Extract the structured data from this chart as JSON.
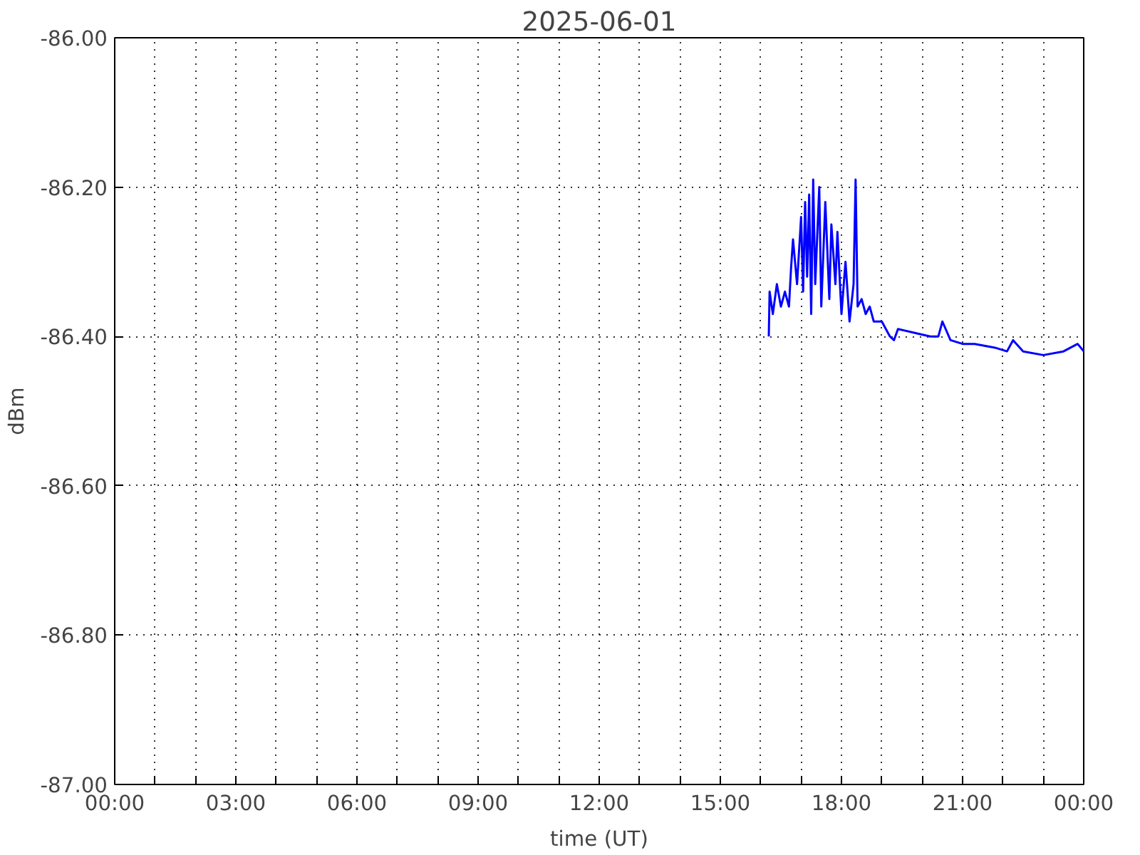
{
  "chart_data": {
    "type": "line",
    "title": "2025-06-01",
    "xlabel": "time (UT)",
    "ylabel": "dBm",
    "xlim": [
      0,
      24
    ],
    "ylim": [
      -87,
      -86
    ],
    "xticks": [
      {
        "value": 0,
        "label": "00:00"
      },
      {
        "value": 1,
        "label": null
      },
      {
        "value": 2,
        "label": null
      },
      {
        "value": 3,
        "label": "03:00"
      },
      {
        "value": 4,
        "label": null
      },
      {
        "value": 5,
        "label": null
      },
      {
        "value": 6,
        "label": "06:00"
      },
      {
        "value": 7,
        "label": null
      },
      {
        "value": 8,
        "label": null
      },
      {
        "value": 9,
        "label": "09:00"
      },
      {
        "value": 10,
        "label": null
      },
      {
        "value": 11,
        "label": null
      },
      {
        "value": 12,
        "label": "12:00"
      },
      {
        "value": 13,
        "label": null
      },
      {
        "value": 14,
        "label": null
      },
      {
        "value": 15,
        "label": "15:00"
      },
      {
        "value": 16,
        "label": null
      },
      {
        "value": 17,
        "label": null
      },
      {
        "value": 18,
        "label": "18:00"
      },
      {
        "value": 19,
        "label": null
      },
      {
        "value": 20,
        "label": null
      },
      {
        "value": 21,
        "label": "21:00"
      },
      {
        "value": 22,
        "label": null
      },
      {
        "value": 23,
        "label": null
      },
      {
        "value": 24,
        "label": "00:00"
      }
    ],
    "yticks": [
      {
        "value": -87,
        "label": "-87.00"
      },
      {
        "value": -86.8,
        "label": "-86.80"
      },
      {
        "value": -86.6,
        "label": "-86.60"
      },
      {
        "value": -86.4,
        "label": "-86.40"
      },
      {
        "value": -86.2,
        "label": "-86.20"
      },
      {
        "value": -86,
        "label": "-86.00"
      }
    ],
    "grid": true,
    "line_style": "solid",
    "marker": "none",
    "series": [
      {
        "color": "#0000ff",
        "x": [
          16.2,
          16.22,
          16.3,
          16.4,
          16.5,
          16.6,
          16.7,
          16.75,
          16.8,
          16.9,
          17.0,
          17.05,
          17.1,
          17.15,
          17.2,
          17.25,
          17.3,
          17.35,
          17.45,
          17.5,
          17.6,
          17.7,
          17.75,
          17.85,
          17.9,
          18.0,
          18.1,
          18.2,
          18.3,
          18.35,
          18.4,
          18.5,
          18.6,
          18.7,
          18.8,
          19.0,
          19.2,
          19.3,
          19.4,
          19.8,
          20.2,
          20.4,
          20.5,
          20.7,
          21.0,
          21.3,
          21.8,
          22.1,
          22.25,
          22.5,
          23.0,
          23.5,
          23.85,
          24.0
        ],
        "values": [
          -86.4,
          -86.34,
          -86.37,
          -86.33,
          -86.36,
          -86.34,
          -86.36,
          -86.31,
          -86.27,
          -86.33,
          -86.24,
          -86.34,
          -86.22,
          -86.32,
          -86.21,
          -86.37,
          -86.19,
          -86.33,
          -86.2,
          -86.36,
          -86.22,
          -86.35,
          -86.25,
          -86.33,
          -86.26,
          -86.37,
          -86.3,
          -86.38,
          -86.33,
          -86.19,
          -86.36,
          -86.35,
          -86.37,
          -86.36,
          -86.38,
          -86.38,
          -86.4,
          -86.405,
          -86.39,
          -86.395,
          -86.4,
          -86.4,
          -86.38,
          -86.405,
          -86.41,
          -86.41,
          -86.415,
          -86.42,
          -86.405,
          -86.42,
          -86.425,
          -86.42,
          -86.41,
          -86.42
        ]
      }
    ]
  }
}
